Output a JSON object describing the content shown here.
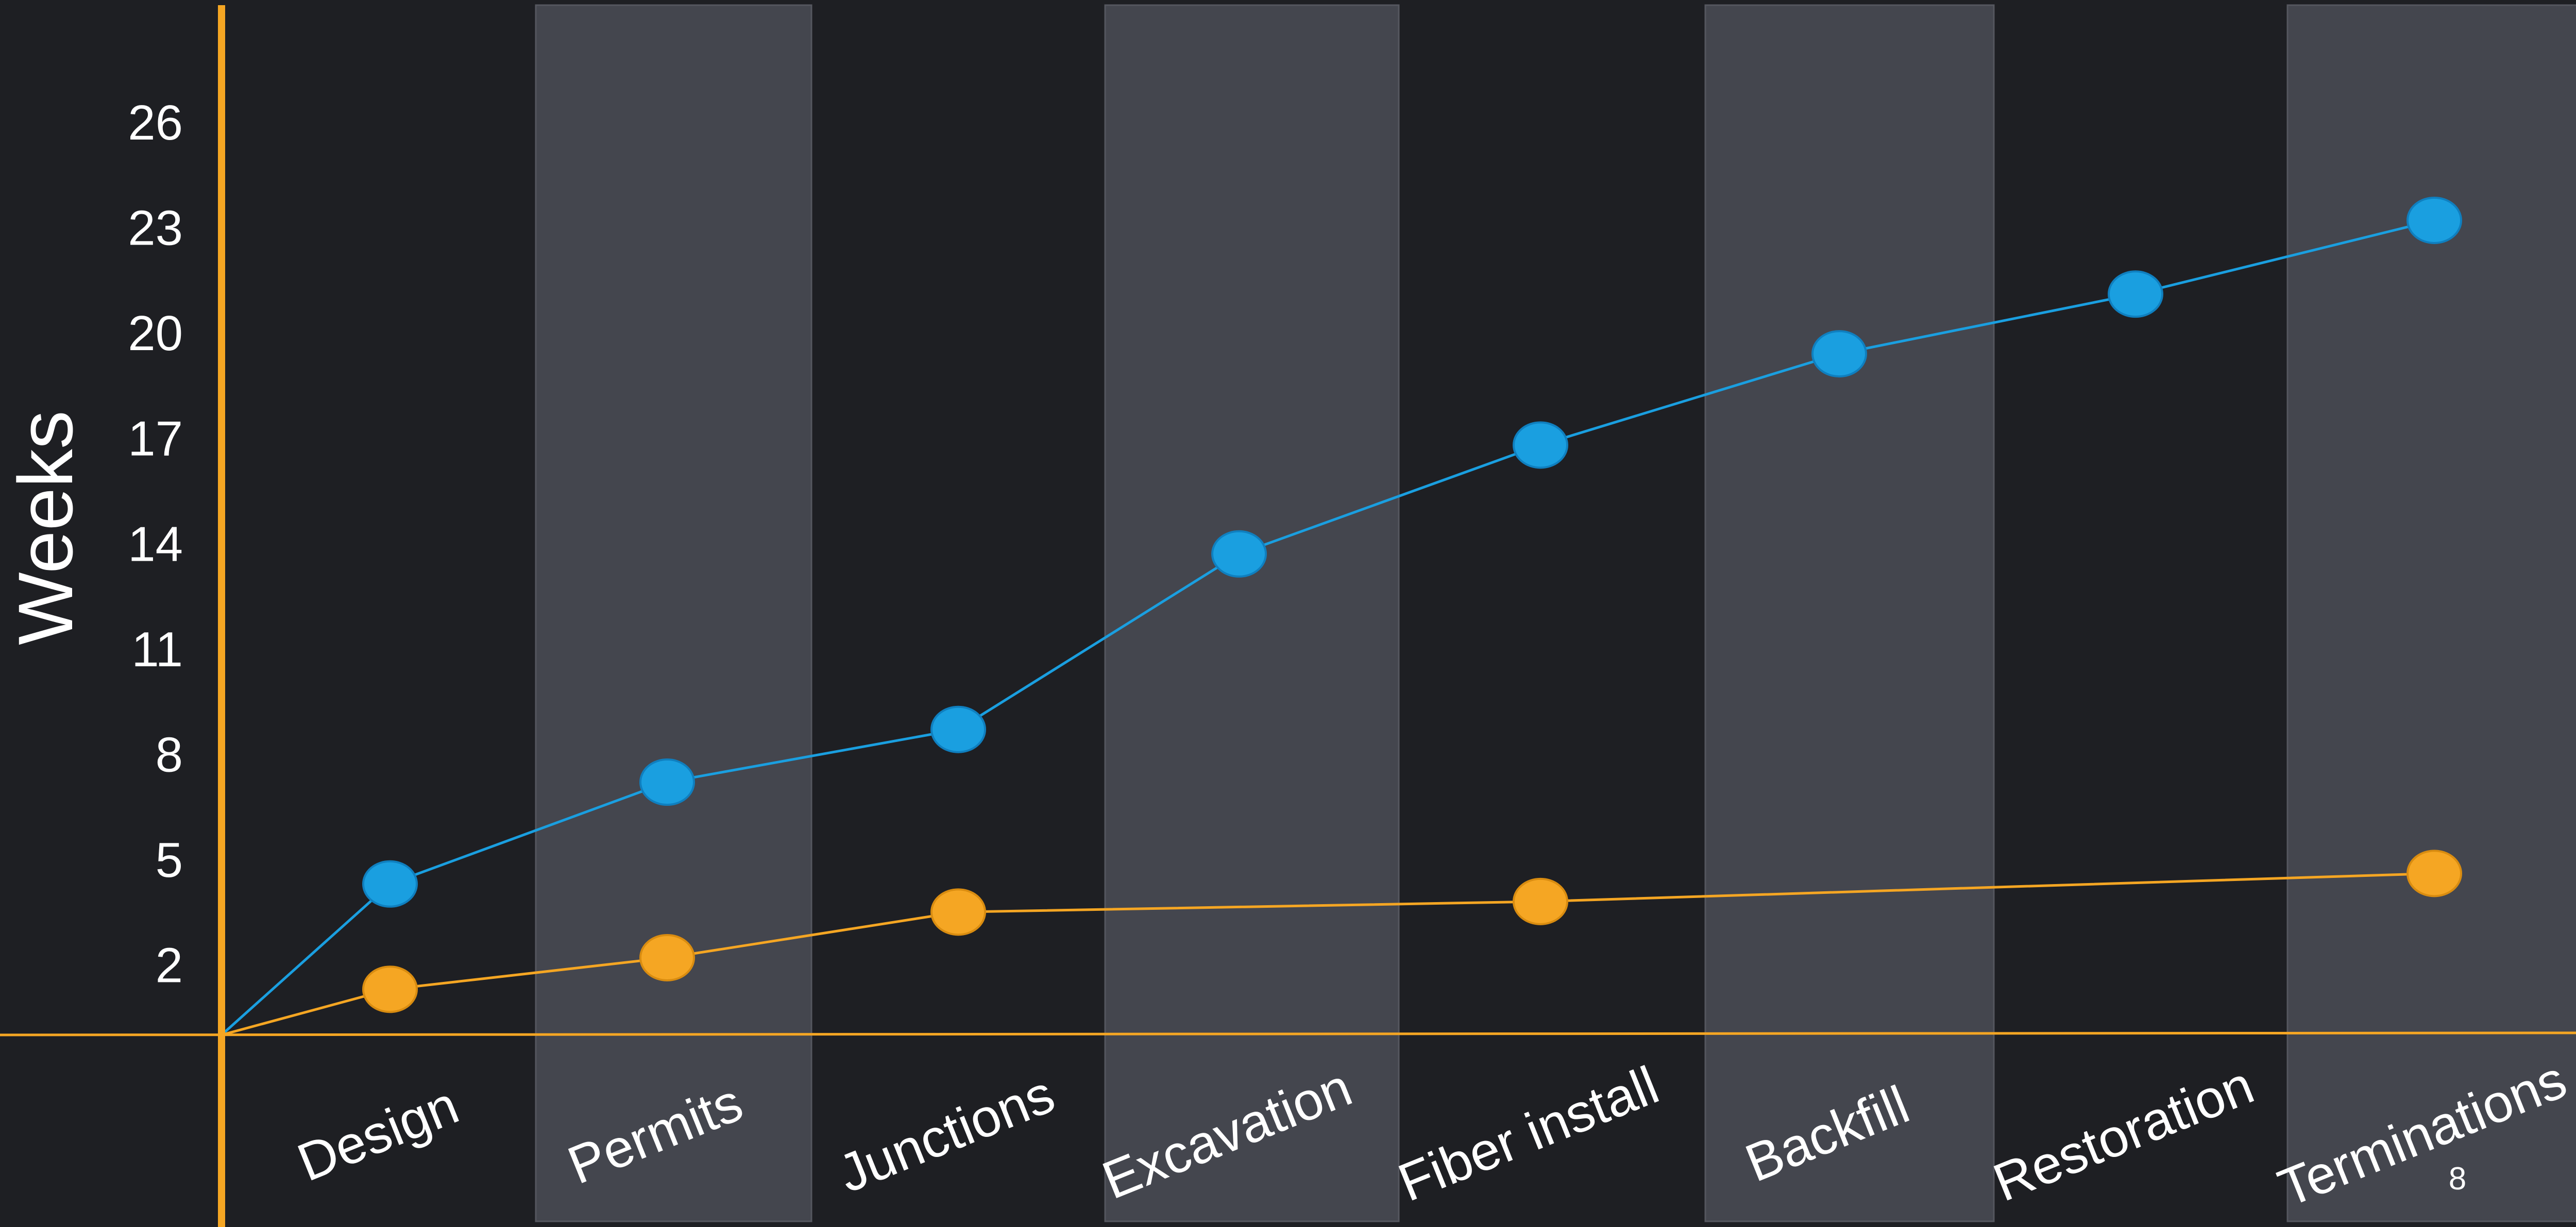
{
  "page_number": "8",
  "chart_data": {
    "type": "line",
    "title": "",
    "xlabel": "",
    "ylabel": "Weeks",
    "categories": [
      "Design",
      "Permits",
      "Junctions",
      "Excavation",
      "Fiber install",
      "Backfill",
      "Restoration",
      "Terminations"
    ],
    "yticks": [
      "2",
      "5",
      "8",
      "11",
      "14",
      "17",
      "20",
      "23",
      "26"
    ],
    "ylim": [
      0,
      29
    ],
    "grid": false,
    "legend": "none",
    "series": [
      {
        "color": "#1a9fe0",
        "points": [
          {
            "category": "Design",
            "y": 4.3
          },
          {
            "category": "Permits",
            "y": 7.2
          },
          {
            "category": "Junctions",
            "y": 8.7
          },
          {
            "category": "Excavation",
            "y": 13.7
          },
          {
            "category": "Fiber install",
            "y": 16.8
          },
          {
            "category": "Backfill",
            "y": 19.4
          },
          {
            "category": "Restoration",
            "y": 21.1
          },
          {
            "category": "Terminations",
            "y": 23.2
          }
        ]
      },
      {
        "color": "#f5a623",
        "points": [
          {
            "category": "Design",
            "y": 1.3
          },
          {
            "category": "Permits",
            "y": 2.2
          },
          {
            "category": "Junctions",
            "y": 3.5
          },
          {
            "category": "Fiber install",
            "y": 3.8
          },
          {
            "category": "Terminations",
            "y": 4.6
          }
        ]
      }
    ],
    "colors": {
      "background": "#1e1f23",
      "band": "#44464e",
      "axis": "#f5a623",
      "text": "#ffffff"
    }
  }
}
